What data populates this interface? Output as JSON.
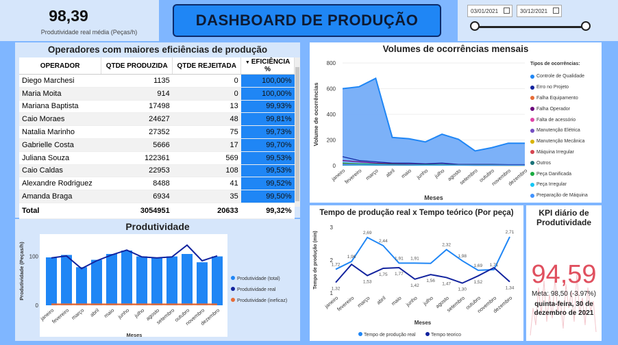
{
  "kpi_top": {
    "value": "98,39",
    "label": "Produtividade real média (Peças/h)"
  },
  "header": {
    "title": "DASHBOARD DE PRODUÇÃO"
  },
  "date_slicer": {
    "start": "03/01/2021",
    "end": "30/12/2021"
  },
  "operators": {
    "title": "Operadores com maiores eficiências de produção",
    "columns": [
      "OPERADOR",
      "QTDE PRODUZIDA",
      "QTDE REJEITADA",
      "EFICIÊNCIA %"
    ],
    "rows": [
      [
        "Diego Marchesi",
        "1135",
        "0",
        "100,00%"
      ],
      [
        "Maria Moita",
        "914",
        "0",
        "100,00%"
      ],
      [
        "Mariana Baptista",
        "17498",
        "13",
        "99,93%"
      ],
      [
        "Caio Moraes",
        "24627",
        "48",
        "99,81%"
      ],
      [
        "Natalia Marinho",
        "27352",
        "75",
        "99,73%"
      ],
      [
        "Gabrielle Costa",
        "5666",
        "17",
        "99,70%"
      ],
      [
        "Juliana Souza",
        "122361",
        "569",
        "99,53%"
      ],
      [
        "Caio Caldas",
        "22953",
        "108",
        "99,53%"
      ],
      [
        "Alexandre Rodriguez",
        "8488",
        "41",
        "99,52%"
      ],
      [
        "Amanda Braga",
        "6934",
        "35",
        "99,50%"
      ]
    ],
    "total": [
      "Total",
      "3054951",
      "20633",
      "99,32%"
    ]
  },
  "volumes": {
    "title": "Volumes de ocorrências mensais",
    "legend_title": "Tipos de ocorrências:"
  },
  "produtividade": {
    "title": "Produtividade"
  },
  "tempo": {
    "title": "Tempo de produção real x Tempo teórico (Por peça)"
  },
  "kpi_daily": {
    "title": "KPI diário de Produtividade",
    "value": "94,59",
    "meta": "Meta: 98,50 (-3.97%)",
    "date": "quinta-feira, 30 de dezembro de 2021"
  },
  "chart_data": [
    {
      "id": "volumes",
      "type": "area",
      "xlabel": "Meses",
      "ylabel": "Volume de ocorrências",
      "ylim": [
        0,
        800
      ],
      "yticks": [
        0,
        200,
        400,
        600,
        800
      ],
      "categories": [
        "janeiro",
        "fevereiro",
        "março",
        "abril",
        "maio",
        "junho",
        "julho",
        "agosto",
        "setembro",
        "outubro",
        "novembro",
        "dezembro"
      ],
      "legend": "right",
      "series": [
        {
          "name": "Controle de Qualidade",
          "color": "#1f86f5",
          "values": [
            600,
            615,
            680,
            220,
            210,
            185,
            245,
            205,
            115,
            140,
            175,
            175
          ]
        },
        {
          "name": "Erro no Projeto",
          "color": "#12239e",
          "values": [
            70,
            40,
            30,
            20,
            20,
            15,
            20,
            10,
            10,
            10,
            8,
            8
          ]
        },
        {
          "name": "Falha Equipamento",
          "color": "#e66c37",
          "values": [
            10,
            8,
            8,
            5,
            5,
            5,
            5,
            5,
            3,
            3,
            3,
            3
          ]
        },
        {
          "name": "Falha Operador",
          "color": "#6b007b",
          "values": [
            40,
            30,
            20,
            15,
            12,
            10,
            10,
            8,
            8,
            8,
            6,
            6
          ]
        },
        {
          "name": "Falta de acessório",
          "color": "#e044a7",
          "values": [
            8,
            6,
            6,
            4,
            4,
            4,
            4,
            4,
            3,
            3,
            3,
            3
          ]
        },
        {
          "name": "Manutenção Elétrica",
          "color": "#744ec2",
          "values": [
            12,
            10,
            8,
            6,
            6,
            5,
            5,
            5,
            4,
            4,
            4,
            4
          ]
        },
        {
          "name": "Manutenção Mecânica",
          "color": "#d9b300",
          "values": [
            6,
            5,
            5,
            4,
            4,
            3,
            3,
            3,
            3,
            3,
            2,
            2
          ]
        },
        {
          "name": "Máquina Irregular",
          "color": "#d64550",
          "values": [
            15,
            12,
            10,
            8,
            8,
            6,
            6,
            6,
            5,
            5,
            4,
            4
          ]
        },
        {
          "name": "Outros",
          "color": "#197278",
          "values": [
            5,
            5,
            4,
            4,
            3,
            3,
            3,
            3,
            2,
            2,
            2,
            2
          ]
        },
        {
          "name": "Peça Danificada",
          "color": "#1aab40",
          "values": [
            20,
            15,
            12,
            10,
            8,
            8,
            8,
            6,
            6,
            6,
            5,
            5
          ]
        },
        {
          "name": "Peça Irregular",
          "color": "#15c6f4",
          "values": [
            8,
            6,
            6,
            5,
            5,
            4,
            4,
            4,
            3,
            3,
            3,
            3
          ]
        },
        {
          "name": "Preparação de Máquina",
          "color": "#4092ff",
          "values": [
            10,
            8,
            8,
            6,
            6,
            5,
            5,
            5,
            4,
            4,
            4,
            4
          ]
        }
      ]
    },
    {
      "id": "produtividade",
      "type": "bar",
      "xlabel": "Meses",
      "ylabel": "Produtividade (Peças/h)",
      "ylim": [
        0,
        140
      ],
      "yticks": [
        0,
        100
      ],
      "categories": [
        "janeiro",
        "fevereiro",
        "março",
        "abril",
        "maio",
        "junho",
        "julho",
        "agosto",
        "setembro",
        "outubro",
        "novembro",
        "dezembro"
      ],
      "legend": "right",
      "series": [
        {
          "name": "Produtividade (total)",
          "color": "#1f86f5",
          "values": [
            98,
            103,
            78,
            93,
            105,
            112,
            100,
            98,
            100,
            105,
            88,
            100
          ]
        },
        {
          "name": "Produtividade real",
          "color": "#12239e",
          "values": [
            97,
            101,
            75,
            91,
            103,
            113,
            99,
            97,
            99,
            123,
            91,
            101
          ]
        },
        {
          "name": "Produtividade (ineficaz)",
          "color": "#e66c37",
          "values": [
            2,
            2,
            2,
            2,
            2,
            2,
            2,
            2,
            2,
            2,
            2,
            2
          ]
        }
      ]
    },
    {
      "id": "tempo",
      "type": "line",
      "xlabel": "Meses",
      "ylabel": "Tempo de produção (min)",
      "ylim": [
        1,
        3
      ],
      "yticks": [
        1,
        2,
        3
      ],
      "categories": [
        "janeiro",
        "fevereiro",
        "março",
        "abril",
        "maio",
        "junho",
        "julho",
        "agosto",
        "setembro",
        "outubro",
        "novembro",
        "dezembro"
      ],
      "legend": "bottom",
      "series": [
        {
          "name": "Tempo de produção real",
          "color": "#1f86f5",
          "values": [
            1.72,
            1.96,
            2.69,
            2.44,
            1.91,
            1.91,
            1.9,
            2.32,
            1.98,
            1.69,
            1.71,
            2.71
          ],
          "labels": [
            "1,72",
            "1,96",
            "2,69",
            "2,44",
            "1,91",
            "1,91",
            "",
            "2,32",
            "1,98",
            "1,69",
            "1,71",
            "2,71"
          ]
        },
        {
          "name": "Tempo teorico",
          "color": "#12239e",
          "values": [
            1.32,
            1.87,
            1.53,
            1.75,
            1.77,
            1.42,
            1.56,
            1.47,
            1.3,
            1.52,
            1.77,
            1.34
          ],
          "labels": [
            "1,32",
            "",
            "1,53",
            "1,75",
            "1,77",
            "1,42",
            "1,56",
            "1,47",
            "1,30",
            "1,52",
            "",
            "1,34"
          ]
        }
      ]
    }
  ]
}
